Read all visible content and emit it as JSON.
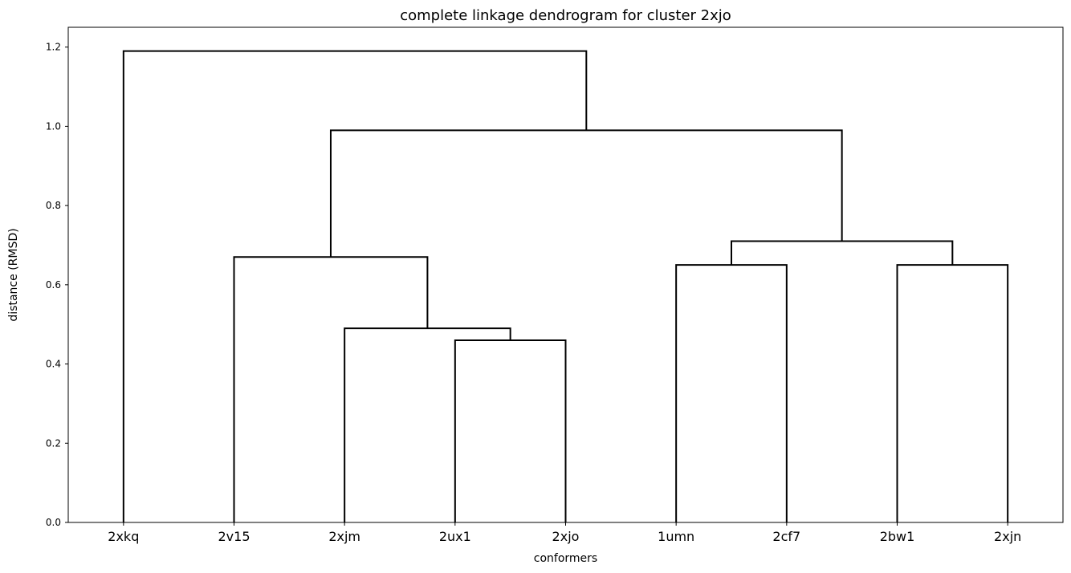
{
  "chart_data": {
    "type": "dendrogram",
    "title": "complete linkage dendrogram for cluster 2xjo",
    "xlabel": "conformers",
    "ylabel": "distance (RMSD)",
    "leaves": [
      "2xkq",
      "2v15",
      "2xjm",
      "2ux1",
      "2xjo",
      "1umn",
      "2cf7",
      "2bw1",
      "2xjn"
    ],
    "merges": [
      {
        "left": "2ux1",
        "right": "2xjo",
        "height": 0.46
      },
      {
        "left": "2xjm",
        "right": "2ux1+2xjo",
        "height": 0.49
      },
      {
        "left": "2v15",
        "right": "2xjm+2ux1+2xjo",
        "height": 0.67
      },
      {
        "left": "1umn",
        "right": "2cf7",
        "height": 0.65
      },
      {
        "left": "2bw1",
        "right": "2xjn",
        "height": 0.65
      },
      {
        "left": "1umn+2cf7",
        "right": "2bw1+2xjn",
        "height": 0.71
      },
      {
        "left": "2v15+2xjm+2ux1+2xjo",
        "right": "1umn+2cf7+2bw1+2xjn",
        "height": 0.99
      },
      {
        "left": "2xkq",
        "right": "rest",
        "height": 1.19
      }
    ],
    "ylim": [
      0,
      1.25
    ],
    "yticks": [
      "0.0",
      "0.2",
      "0.4",
      "0.6",
      "0.8",
      "1.0",
      "1.2"
    ],
    "grid": false,
    "color": "#000000"
  }
}
